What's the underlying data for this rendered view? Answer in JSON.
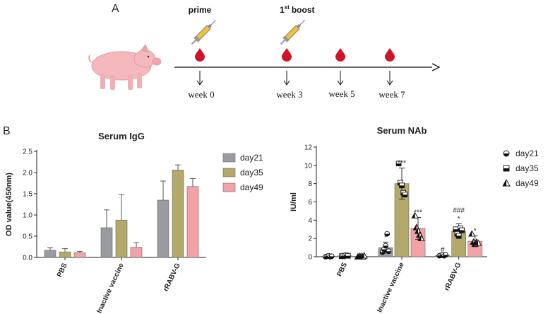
{
  "panel_a": {
    "letter": "A",
    "events": [
      {
        "id": "prime",
        "label": "prime",
        "superscript": ""
      },
      {
        "id": "boost",
        "label": "boost",
        "prefix": "1",
        "superscript": "st"
      }
    ],
    "timepoints": [
      "week 0",
      "week 3",
      "week 5",
      "week 7"
    ],
    "colors": {
      "blood": "#d0142c",
      "pig": "#f4b8bd",
      "axis": "#111111"
    }
  },
  "panel_b_letter": "B",
  "chart_data": [
    {
      "type": "bar",
      "title": "Serum IgG",
      "ylabel": "OD value(450nm)",
      "xlabel": "",
      "ylim": [
        0,
        2.5
      ],
      "yticks": [
        "0.0",
        "0.5",
        "1.0",
        "1.5",
        "2.0",
        "2.5"
      ],
      "categories": [
        "PBS",
        "Inactive vaccine",
        "rRABV-G"
      ],
      "series": [
        {
          "name": "day21",
          "color": "#9a9ba0",
          "values": [
            0.17,
            0.7,
            1.35
          ],
          "errors": [
            0.06,
            0.42,
            0.45
          ]
        },
        {
          "name": "day35",
          "color": "#b3a96a",
          "values": [
            0.13,
            0.88,
            2.06
          ],
          "errors": [
            0.08,
            0.6,
            0.12
          ]
        },
        {
          "name": "day49",
          "color": "#f3a3a8",
          "values": [
            0.11,
            0.24,
            1.67
          ],
          "errors": [
            0.03,
            0.11,
            0.19
          ]
        }
      ],
      "legend_position": "right",
      "grid": false
    },
    {
      "type": "bar",
      "title": "Serum NAb",
      "ylabel": "IU/ml",
      "xlabel": "",
      "ylim": [
        0,
        12
      ],
      "yticks": [
        "0",
        "2",
        "4",
        "6",
        "8",
        "10",
        "12"
      ],
      "categories": [
        "PBS",
        "Inactive vaccine",
        "rRABV-G"
      ],
      "series": [
        {
          "name": "day21",
          "marker": "half-circle",
          "color": "#9a9ba0",
          "values": [
            0.05,
            1.0,
            0.15
          ],
          "errors": [
            0.05,
            0.6,
            0.1
          ],
          "points": [
            [
              0.0,
              0.05,
              0.1,
              0.0,
              0.05
            ],
            [
              0.5,
              0.8,
              1.2,
              2.5,
              0.6
            ],
            [
              0.1,
              0.15,
              0.2,
              0.1,
              0.2
            ]
          ],
          "annotations": [
            "",
            "*",
            "#"
          ]
        },
        {
          "name": "day35",
          "marker": "half-square",
          "color": "#b3a96a",
          "values": [
            0.1,
            8.0,
            2.8
          ],
          "errors": [
            0.1,
            1.7,
            0.8
          ],
          "points": [
            [
              0.05,
              0.1,
              0.1,
              0.15,
              0.1
            ],
            [
              10.2,
              8.1,
              7.8,
              7.0,
              6.8
            ],
            [
              3.0,
              2.5,
              2.3,
              3.1,
              2.9
            ]
          ],
          "annotations": [
            "",
            "***",
            "*"
          ]
        },
        {
          "name": "day49",
          "marker": "half-triangle",
          "color": "#f3a3a8",
          "values": [
            0.05,
            3.1,
            1.7
          ],
          "errors": [
            0.05,
            1.2,
            0.6
          ],
          "points": [
            [
              0.0,
              0.05,
              0.05,
              0.0,
              0.1
            ],
            [
              4.5,
              3.2,
              2.8,
              2.4,
              2.0
            ],
            [
              2.5,
              1.6,
              1.4,
              1.6,
              1.5
            ]
          ],
          "annotations": [
            "",
            "***",
            "*"
          ]
        }
      ],
      "extra_annotations": [
        {
          "category": 2,
          "series": 1,
          "text": "###"
        }
      ],
      "legend_position": "right",
      "grid": false
    }
  ]
}
